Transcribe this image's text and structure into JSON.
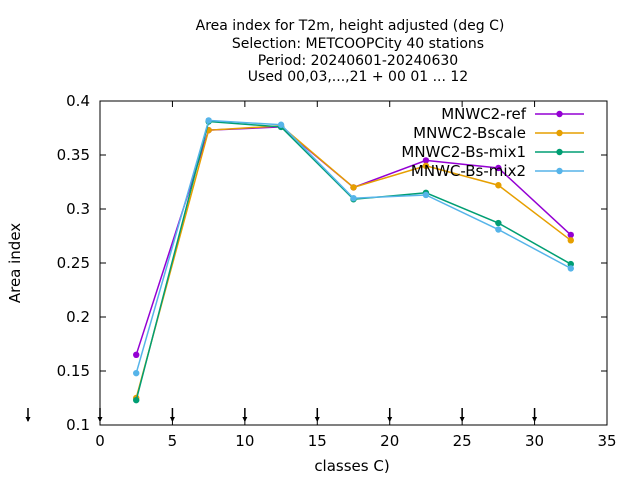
{
  "title_lines": [
    "Area index  for T2m, height adjusted (deg C)",
    "Selection: METCOOPCity     40 stations",
    "Period: 20240601-20240630",
    "Used 00,03,...,21 + 00 01 ... 12"
  ],
  "chart_data": {
    "type": "line",
    "title": "Area index  for T2m, height adjusted (deg C)",
    "xlabel": "classes C)",
    "ylabel": "Area index",
    "xlim": [
      0,
      35
    ],
    "ylim": [
      0.1,
      0.4
    ],
    "xticks": [
      "0",
      "5",
      "10",
      "15",
      "20",
      "25",
      "30",
      "35"
    ],
    "yticks": [
      "0.1",
      "0.15",
      "0.2",
      "0.25",
      "0.3",
      "0.35",
      "0.4"
    ],
    "grid": false,
    "legend_position": "top-right",
    "x": [
      2.5,
      7.5,
      12.5,
      17.5,
      22.5,
      27.5,
      32.5
    ],
    "series": [
      {
        "name": "MNWC2-ref",
        "color": "#9400d3",
        "values": [
          0.165,
          0.373,
          0.376,
          0.32,
          0.345,
          0.338,
          0.276
        ]
      },
      {
        "name": "MNWC2-Bscale",
        "color": "#e69f00",
        "values": [
          0.125,
          0.373,
          0.377,
          0.32,
          0.34,
          0.322,
          0.271
        ]
      },
      {
        "name": "MNWC2-Bs-mix1",
        "color": "#009e73",
        "values": [
          0.123,
          0.381,
          0.376,
          0.309,
          0.315,
          0.287,
          0.249
        ]
      },
      {
        "name": "MNWC-Bs-mix2",
        "color": "#56b4e9",
        "values": [
          0.148,
          0.382,
          0.378,
          0.31,
          0.313,
          0.281,
          0.245
        ]
      }
    ],
    "event_markers_x": [
      0,
      5,
      10,
      15,
      20,
      25,
      30
    ]
  }
}
